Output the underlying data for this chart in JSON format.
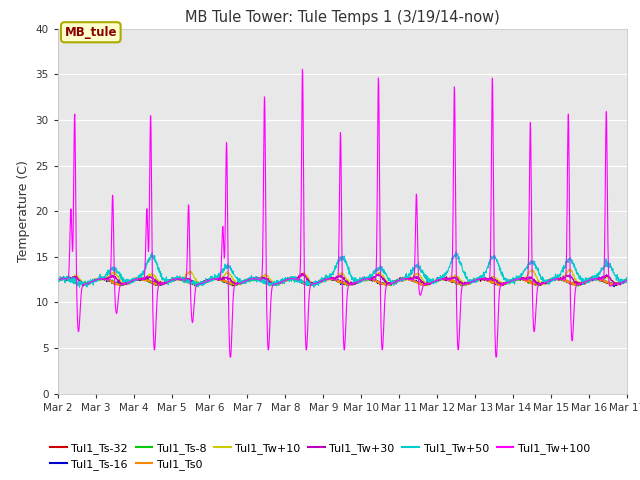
{
  "title": "MB Tule Tower: Tule Temps 1 (3/19/14-now)",
  "ylabel": "Temperature (C)",
  "xlabel": "",
  "ylim": [
    0,
    40
  ],
  "yticks": [
    0,
    5,
    10,
    15,
    20,
    25,
    30,
    35,
    40
  ],
  "xlim_days": 15,
  "xtick_labels": [
    "Mar 2",
    "Mar 3",
    "Mar 4",
    "Mar 5",
    "Mar 6",
    "Mar 7",
    "Mar 8",
    "Mar 9",
    "Mar 10",
    "Mar 11",
    "Mar 12",
    "Mar 13",
    "Mar 14",
    "Mar 15",
    "Mar 16",
    "Mar 17"
  ],
  "series_colors": {
    "Tul1_Ts-32": "#cc0000",
    "Tul1_Ts-16": "#0000cc",
    "Tul1_Ts-8": "#00cc00",
    "Tul1_Ts0": "#ff8800",
    "Tul1_Tw+10": "#cccc00",
    "Tul1_Tw+30": "#bb00bb",
    "Tul1_Tw+50": "#00cccc",
    "Tul1_Tw+100": "#ff00ff"
  },
  "legend_box_facecolor": "#ffffcc",
  "legend_box_edgecolor": "#aaaa00",
  "legend_box_text": "MB_tule",
  "legend_box_text_color": "#880000",
  "plot_bg_color": "#e8e8e8",
  "fig_bg_color": "#ffffff",
  "grid_color": "#ffffff",
  "spike_heights": [
    31,
    22,
    31,
    21,
    28,
    33,
    36,
    29,
    35,
    22,
    34,
    35,
    30,
    31,
    31
  ],
  "spike_dip_depths": [
    7,
    9,
    5,
    8,
    4,
    5,
    5,
    5,
    5,
    11,
    5,
    4,
    7,
    6,
    12
  ],
  "base_temp": 12.3
}
